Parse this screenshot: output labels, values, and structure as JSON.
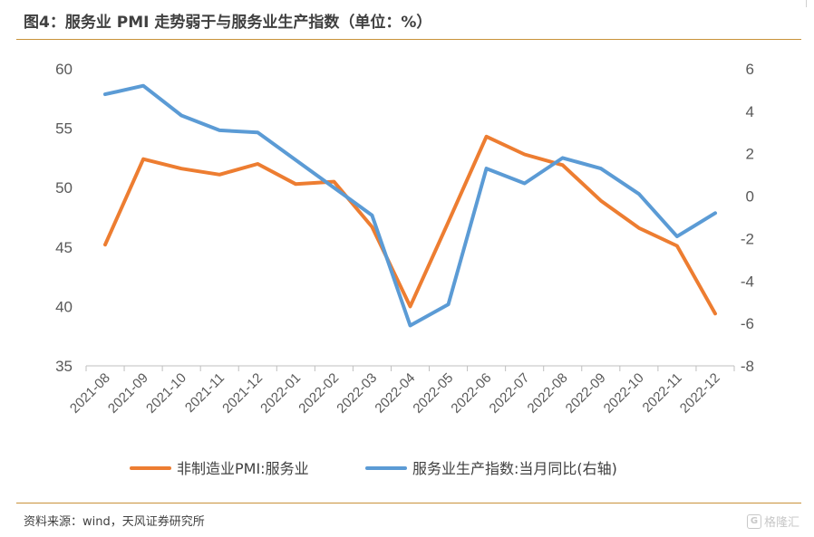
{
  "title": "图4：服务业 PMI 走势弱于与服务业生产指数（单位：%）",
  "source": "资料来源：wind，天风证券研究所",
  "watermark": "格隆汇",
  "watermark_icon": "G",
  "chart_data": {
    "type": "line",
    "categories": [
      "2021-08",
      "2021-09",
      "2021-10",
      "2021-11",
      "2021-12",
      "2022-01",
      "2022-02",
      "2022-03",
      "2022-04",
      "2022-05",
      "2022-06",
      "2022-07",
      "2022-08",
      "2022-09",
      "2022-10",
      "2022-11",
      "2022-12"
    ],
    "left_axis": {
      "ylim": [
        35,
        60
      ],
      "ticks": [
        35,
        40,
        45,
        50,
        55,
        60
      ]
    },
    "right_axis": {
      "ylim": [
        -8,
        6
      ],
      "ticks": [
        -8,
        -6,
        -4,
        -2,
        0,
        2,
        4,
        6
      ]
    },
    "series": [
      {
        "name": "非制造业PMI:服务业",
        "axis": "left",
        "color": "#ed7d31",
        "values": [
          45.2,
          52.4,
          51.6,
          51.1,
          52.0,
          50.3,
          50.5,
          46.7,
          40.0,
          47.1,
          54.3,
          52.8,
          51.9,
          48.9,
          46.6,
          45.1,
          39.4
        ]
      },
      {
        "name": "服务业生产指数:当月同比(右轴)",
        "axis": "right",
        "color": "#5b9bd5",
        "values": [
          4.8,
          5.2,
          3.8,
          3.1,
          3.0,
          1.7,
          0.4,
          -0.9,
          -6.1,
          -5.1,
          1.3,
          0.6,
          1.8,
          1.3,
          0.1,
          -1.9,
          -0.8
        ]
      }
    ],
    "grid": false,
    "legend_position": "bottom"
  }
}
